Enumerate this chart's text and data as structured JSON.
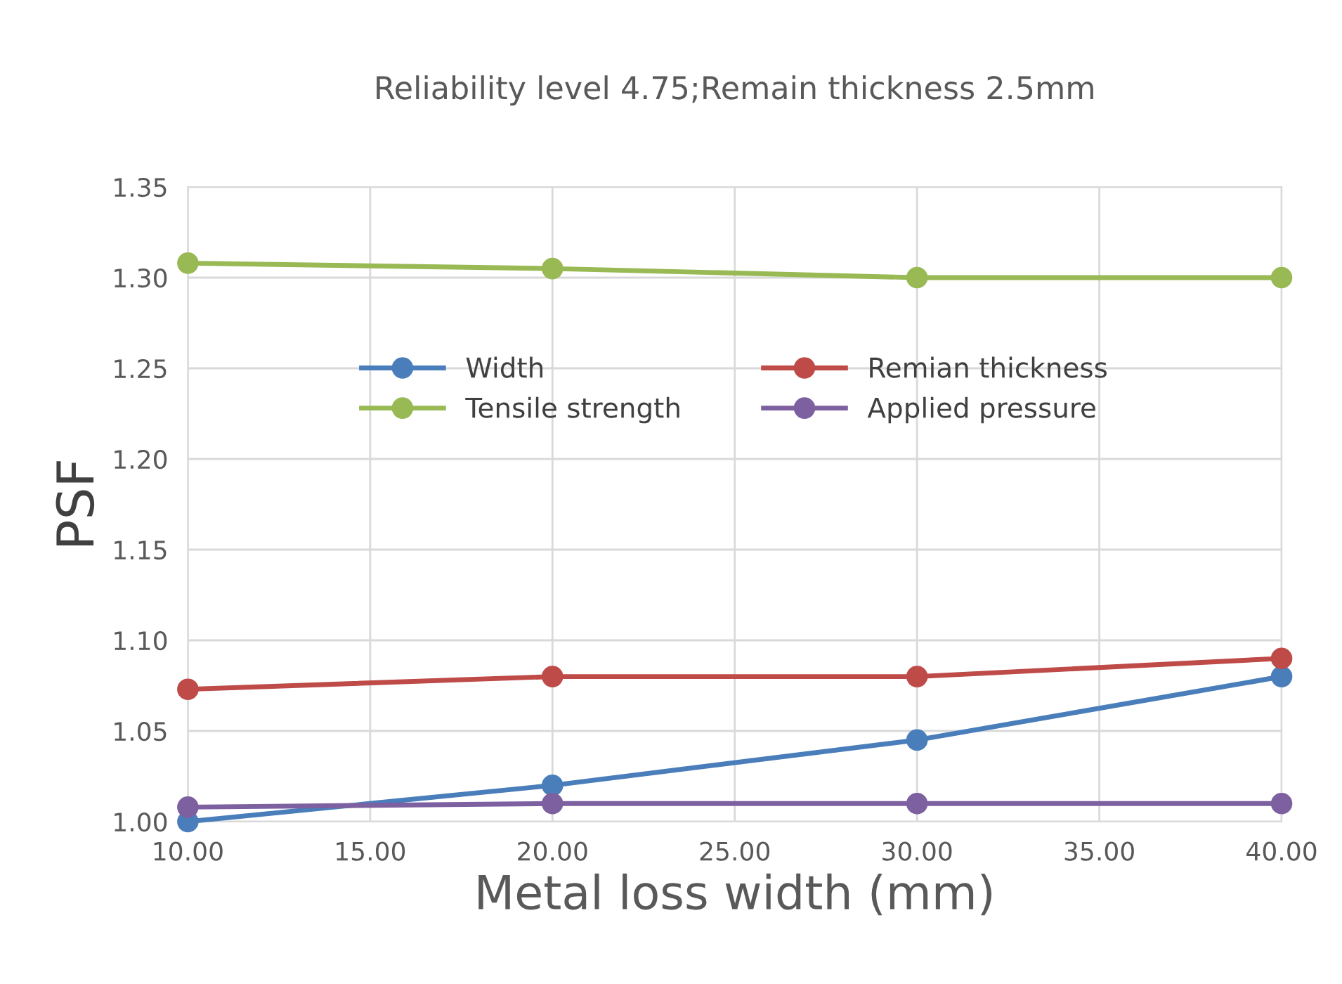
{
  "chart_data": {
    "type": "line",
    "title": "Reliability level 4.75;Remain thickness 2.5mm",
    "xlabel": "Metal loss width (mm)",
    "ylabel": "PSF",
    "x": [
      10,
      20,
      30,
      40
    ],
    "series": [
      {
        "name": "Width",
        "color": "#4a7ebb",
        "values": [
          1.0,
          1.02,
          1.045,
          1.08
        ]
      },
      {
        "name": "Remian thickness",
        "color": "#be4b48",
        "values": [
          1.073,
          1.08,
          1.08,
          1.09
        ]
      },
      {
        "name": "Tensile strength",
        "color": "#98b954",
        "values": [
          1.308,
          1.305,
          1.3,
          1.3
        ]
      },
      {
        "name": "Applied pressure",
        "color": "#7d60a0",
        "values": [
          1.008,
          1.01,
          1.01,
          1.01
        ]
      }
    ],
    "xlim": [
      10,
      40
    ],
    "xticks": [
      {
        "value": 10,
        "label": "10.00"
      },
      {
        "value": 15,
        "label": "15.00"
      },
      {
        "value": 20,
        "label": "20.00"
      },
      {
        "value": 25,
        "label": "25.00"
      },
      {
        "value": 30,
        "label": "30.00"
      },
      {
        "value": 35,
        "label": "35.00"
      },
      {
        "value": 40,
        "label": "40.00"
      }
    ],
    "ylim": [
      1.0,
      1.35
    ],
    "yticks": [
      {
        "value": 1.0,
        "label": "1.00"
      },
      {
        "value": 1.05,
        "label": "1.05"
      },
      {
        "value": 1.1,
        "label": "1.10"
      },
      {
        "value": 1.15,
        "label": "1.15"
      },
      {
        "value": 1.2,
        "label": "1.20"
      },
      {
        "value": 1.25,
        "label": "1.25"
      },
      {
        "value": 1.3,
        "label": "1.30"
      },
      {
        "value": 1.35,
        "label": "1.35"
      }
    ],
    "grid": true,
    "legend": "center",
    "marker": "circle",
    "line_style": "solid"
  }
}
